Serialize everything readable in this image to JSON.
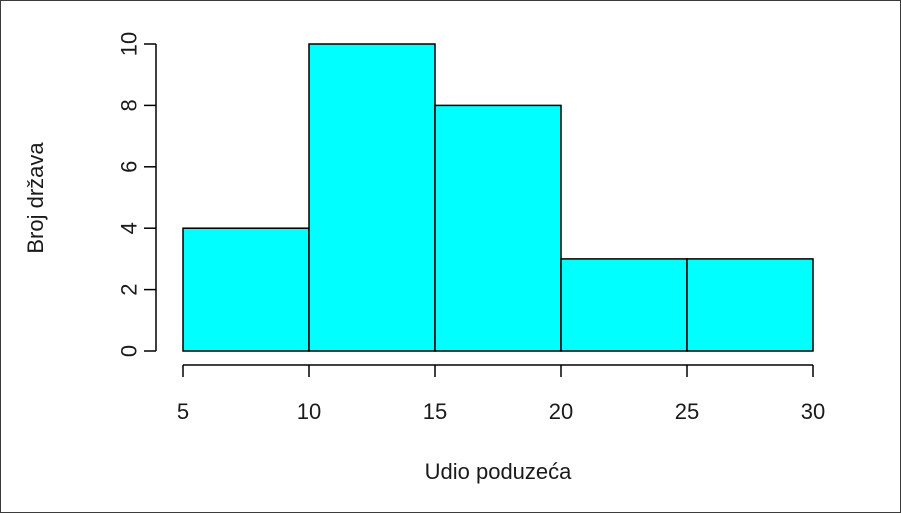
{
  "chart_data": {
    "type": "bar",
    "subtype": "histogram",
    "bins": [
      {
        "from": 5,
        "to": 10,
        "value": 4
      },
      {
        "from": 10,
        "to": 15,
        "value": 10
      },
      {
        "from": 15,
        "to": 20,
        "value": 8
      },
      {
        "from": 20,
        "to": 25,
        "value": 3
      },
      {
        "from": 25,
        "to": 30,
        "value": 3
      }
    ],
    "xlabel": "Udio poduzeća",
    "ylabel": "Broj država",
    "xlim": [
      5,
      30
    ],
    "ylim": [
      0,
      10
    ],
    "xticks": [
      5,
      10,
      15,
      20,
      25,
      30
    ],
    "yticks": [
      0,
      2,
      4,
      6,
      8,
      10
    ],
    "grid": false,
    "bar_color": "#00ffff",
    "edge_color": "#000000"
  }
}
